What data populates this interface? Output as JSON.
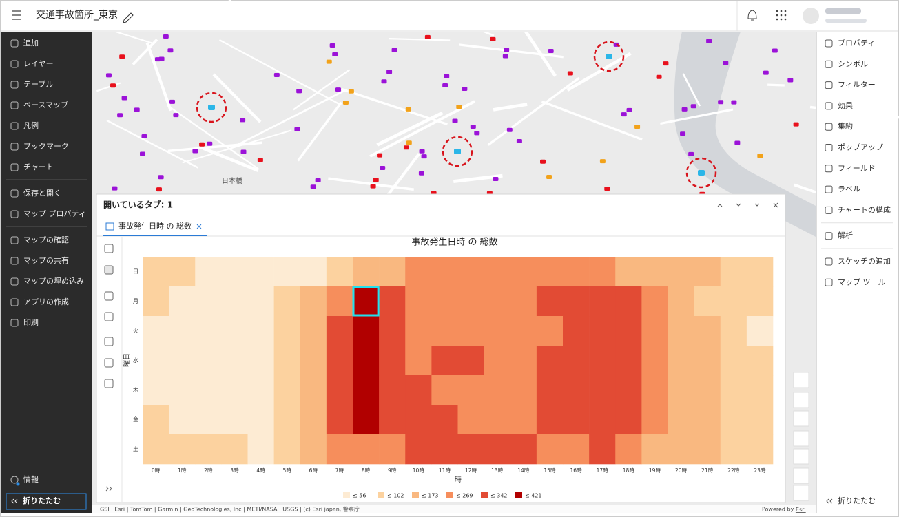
{
  "header": {
    "title": "交通事故箇所_東京"
  },
  "left_nav": {
    "groups": [
      [
        "追加",
        "レイヤー",
        "テーブル",
        "ベースマップ",
        "凡例",
        "ブックマーク",
        "チャート"
      ],
      [
        "保存と開く",
        "マップ プロパティ"
      ],
      [
        "マップの確認",
        "マップの共有",
        "マップの埋め込み",
        "アプリの作成",
        "印刷"
      ]
    ],
    "info": "情報",
    "collapse": "折りたたむ"
  },
  "right_nav": {
    "groups": [
      [
        "プロパティ",
        "シンボル",
        "フィルター",
        "効果",
        "集約",
        "ポップアップ",
        "フィールド",
        "ラベル",
        "チャートの構成"
      ],
      [
        "解析"
      ],
      [
        "スケッチの追加",
        "マップ ツール"
      ]
    ],
    "collapse": "折りたたむ"
  },
  "map": {
    "labels": [
      "日本橋"
    ],
    "attribution": "GSI | Esri | TomTom | Garmin | GeoTechnologies, Inc | METI/NASA | USGS | (c) Esri japan, 警察庁",
    "powered_by": "Powered by",
    "powered_link": "Esri"
  },
  "panel": {
    "title": "開いているタブ: 1",
    "tab": "事故発生日時 の 総数"
  },
  "chart_data": {
    "type": "heatmap",
    "title": "事故発生日時 の 総数",
    "x_label": "時",
    "y_label": "曜日",
    "categories": [
      "0時",
      "1時",
      "2時",
      "3時",
      "4時",
      "5時",
      "6時",
      "7時",
      "8時",
      "9時",
      "10時",
      "11時",
      "12時",
      "13時",
      "14時",
      "15時",
      "16時",
      "17時",
      "18時",
      "19時",
      "20時",
      "21時",
      "22時",
      "23時"
    ],
    "rows": [
      "日",
      "月",
      "火",
      "水",
      "木",
      "金",
      "土"
    ],
    "values": [
      [
        80,
        80,
        40,
        40,
        40,
        40,
        40,
        80,
        140,
        140,
        220,
        220,
        220,
        220,
        220,
        220,
        220,
        220,
        140,
        140,
        140,
        140,
        80,
        80
      ],
      [
        80,
        40,
        40,
        40,
        40,
        80,
        140,
        220,
        400,
        300,
        220,
        220,
        220,
        220,
        220,
        300,
        300,
        300,
        300,
        220,
        140,
        80,
        80,
        80
      ],
      [
        40,
        40,
        40,
        40,
        40,
        80,
        140,
        300,
        400,
        300,
        220,
        220,
        220,
        220,
        220,
        220,
        300,
        300,
        300,
        220,
        140,
        140,
        80,
        40
      ],
      [
        40,
        40,
        40,
        40,
        40,
        80,
        140,
        300,
        400,
        300,
        220,
        300,
        300,
        220,
        220,
        300,
        300,
        300,
        300,
        220,
        140,
        140,
        80,
        80
      ],
      [
        40,
        40,
        40,
        40,
        40,
        80,
        140,
        300,
        400,
        300,
        300,
        220,
        220,
        220,
        220,
        300,
        300,
        300,
        300,
        220,
        140,
        140,
        80,
        80
      ],
      [
        80,
        40,
        40,
        40,
        40,
        80,
        140,
        300,
        400,
        300,
        300,
        300,
        220,
        220,
        220,
        300,
        300,
        300,
        300,
        220,
        140,
        140,
        80,
        80
      ],
      [
        80,
        80,
        80,
        80,
        40,
        80,
        140,
        220,
        220,
        220,
        300,
        300,
        300,
        300,
        300,
        220,
        220,
        300,
        220,
        140,
        140,
        140,
        80,
        80
      ]
    ],
    "legend": [
      {
        "value": 56,
        "label": "≤ 56"
      },
      {
        "value": 102,
        "label": "≤ 102"
      },
      {
        "value": 173,
        "label": "≤ 173"
      },
      {
        "value": 269,
        "label": "≤ 269"
      },
      {
        "value": 342,
        "label": "≤ 342"
      },
      {
        "value": 421,
        "label": "≤ 421"
      }
    ],
    "colors": [
      "#fdebd3",
      "#fcd29f",
      "#f9b880",
      "#f68e5c",
      "#e24b34",
      "#b10000"
    ],
    "selected_cell": {
      "row": "月",
      "column": "8時"
    }
  }
}
